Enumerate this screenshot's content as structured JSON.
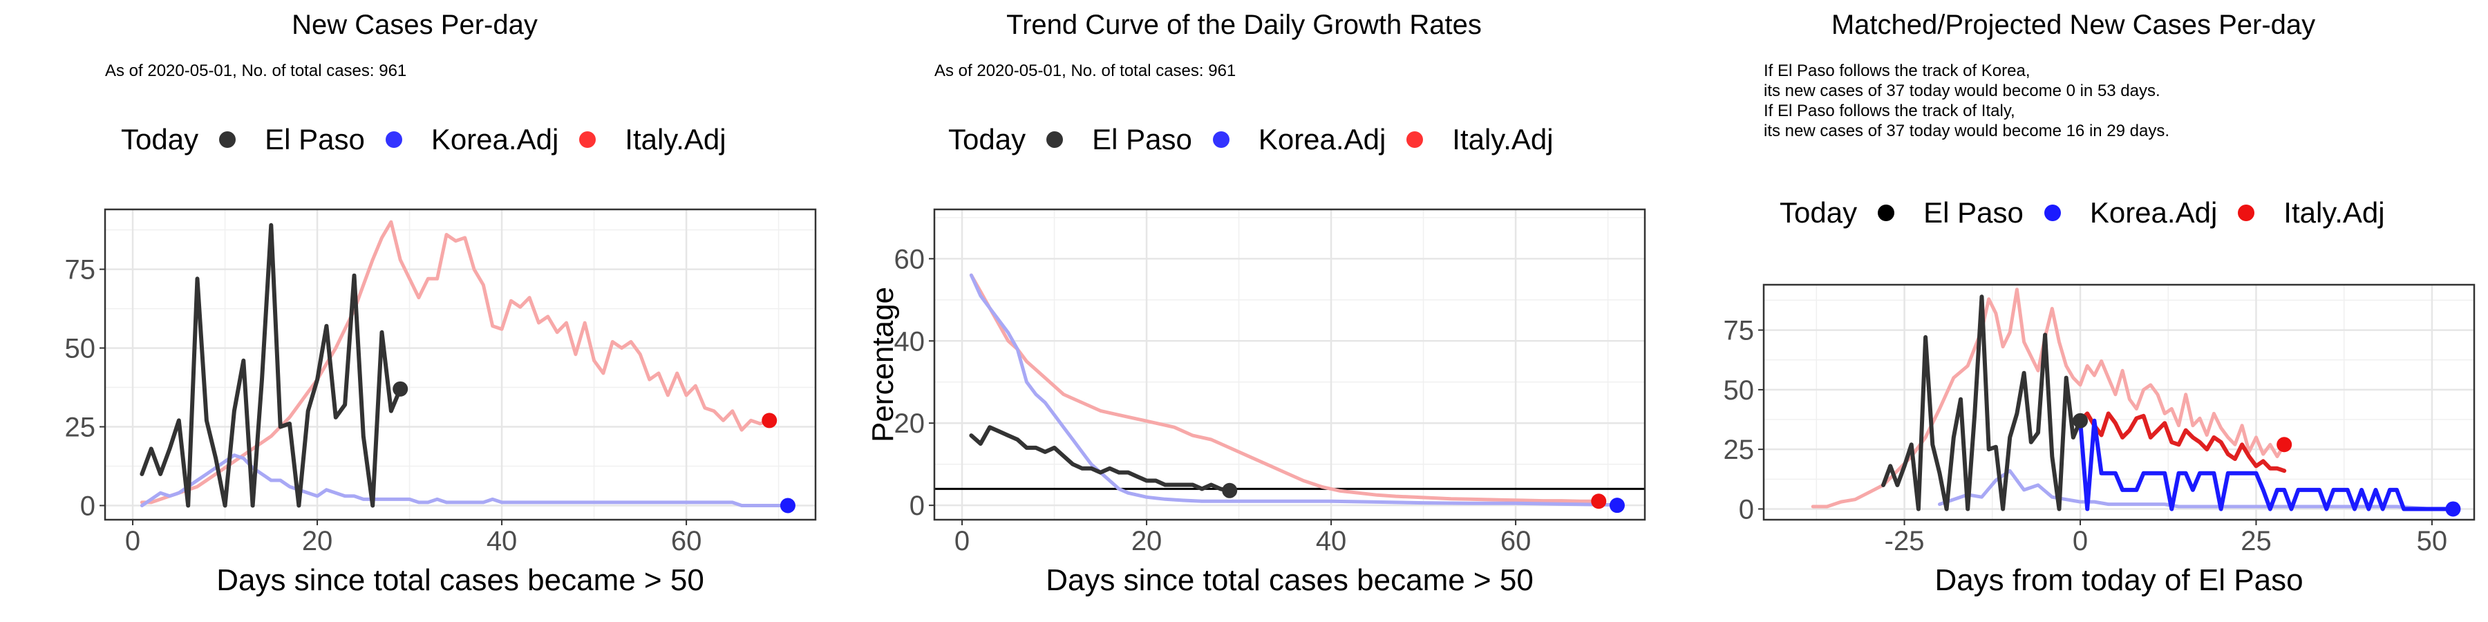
{
  "legend": {
    "title": "Today",
    "entries": [
      {
        "label": "El Paso",
        "color": "#333333"
      },
      {
        "label": "Korea.Adj",
        "color": "#3333ff"
      },
      {
        "label": "Italy.Adj",
        "color": "#ff3333"
      }
    ],
    "entries_panel3": [
      {
        "label": "El Paso",
        "color": "#000000"
      },
      {
        "label": "Korea.Adj",
        "color": "#1a1aff"
      },
      {
        "label": "Italy.Adj",
        "color": "#ee1111"
      }
    ]
  },
  "subtitle": "As of 2020-05-01, No. of total cases: 961",
  "panel3_notes": [
    "If El Paso follows the track of Korea,",
    "its new cases of 37 today would become 0 in 53 days.",
    "If El Paso follows the track of Italy,",
    "its new cases of 37 today would become 16 in 29 days."
  ],
  "chart_data": [
    {
      "type": "line",
      "title": "New Cases Per-day",
      "xlabel": "Days since total cases became > 50",
      "ylabel": "",
      "xlim": [
        -3,
        74
      ],
      "ylim": [
        -4.5,
        94
      ],
      "x_ticks": [
        0,
        20,
        40,
        60
      ],
      "y_ticks": [
        0,
        25,
        50,
        75
      ],
      "grid": true,
      "series": [
        {
          "name": "Italy.Adj",
          "color": "#f7a8a8",
          "x": [
            1,
            2,
            3,
            4,
            5,
            6,
            7,
            8,
            9,
            10,
            11,
            12,
            13,
            14,
            15,
            16,
            17,
            18,
            19,
            20,
            21,
            22,
            23,
            24,
            25,
            26,
            27,
            28,
            29,
            30,
            31,
            32,
            33,
            34,
            35,
            36,
            37,
            38,
            39,
            40,
            41,
            42,
            43,
            44,
            45,
            46,
            47,
            48,
            49,
            50,
            51,
            52,
            53,
            54,
            55,
            56,
            57,
            58,
            59,
            60,
            61,
            62,
            63,
            64,
            65,
            66,
            67,
            68,
            69
          ],
          "y": [
            1,
            1,
            2,
            3,
            4,
            5,
            6,
            8,
            10,
            12,
            14,
            16,
            18,
            20,
            22,
            25,
            28,
            32,
            36,
            40,
            45,
            50,
            56,
            62,
            70,
            78,
            85,
            90,
            78,
            72,
            66,
            72,
            72,
            86,
            84,
            85,
            75,
            70,
            57,
            56,
            65,
            63,
            66,
            58,
            60,
            55,
            58,
            48,
            58,
            46,
            42,
            52,
            50,
            52,
            48,
            40,
            42,
            35,
            42,
            35,
            38,
            31,
            30,
            27,
            30,
            24,
            27,
            26,
            27
          ]
        },
        {
          "name": "Korea.Adj",
          "color": "#a8a8f5",
          "x": [
            1,
            2,
            3,
            4,
            5,
            6,
            7,
            8,
            9,
            10,
            11,
            12,
            13,
            14,
            15,
            16,
            17,
            18,
            19,
            20,
            21,
            22,
            23,
            24,
            25,
            26,
            27,
            28,
            29,
            30,
            31,
            32,
            33,
            34,
            35,
            36,
            37,
            38,
            39,
            40,
            41,
            42,
            43,
            44,
            45,
            46,
            47,
            48,
            49,
            50,
            51,
            52,
            53,
            54,
            55,
            56,
            57,
            58,
            59,
            60,
            61,
            62,
            63,
            64,
            65,
            66,
            67,
            68,
            69,
            70,
            71
          ],
          "y": [
            0,
            2,
            4,
            3,
            4,
            6,
            8,
            10,
            12,
            14,
            16,
            15,
            12,
            10,
            8,
            8,
            6,
            5,
            4,
            3,
            5,
            4,
            3,
            3,
            2,
            2,
            2,
            2,
            2,
            2,
            1,
            1,
            2,
            1,
            1,
            1,
            1,
            1,
            2,
            1,
            1,
            1,
            1,
            1,
            1,
            1,
            1,
            1,
            1,
            1,
            1,
            1,
            1,
            1,
            1,
            1,
            1,
            1,
            1,
            1,
            1,
            1,
            1,
            1,
            1,
            0,
            0,
            0,
            0,
            0,
            0
          ]
        },
        {
          "name": "El Paso",
          "color": "#333333",
          "x": [
            1,
            2,
            3,
            4,
            5,
            6,
            7,
            8,
            9,
            10,
            11,
            12,
            13,
            14,
            15,
            16,
            17,
            18,
            19,
            20,
            21,
            22,
            23,
            24,
            25,
            26,
            27,
            28,
            29
          ],
          "y": [
            10,
            18,
            10,
            18,
            27,
            0,
            72,
            27,
            15,
            0,
            30,
            46,
            0,
            40,
            89,
            25,
            26,
            0,
            30,
            40,
            57,
            28,
            32,
            73,
            22,
            0,
            55,
            30,
            37
          ]
        }
      ],
      "end_points": [
        {
          "series": "El Paso",
          "x": 29,
          "y": 37
        },
        {
          "series": "Korea.Adj",
          "x": 71,
          "y": 0
        },
        {
          "series": "Italy.Adj",
          "x": 69,
          "y": 27
        }
      ]
    },
    {
      "type": "line",
      "title": "Trend Curve of the Daily Growth Rates",
      "xlabel": "Days since total cases became > 50",
      "ylabel": "Percentage",
      "xlim": [
        -3,
        74
      ],
      "ylim": [
        -3.5,
        72
      ],
      "x_ticks": [
        0,
        20,
        40,
        60
      ],
      "y_ticks": [
        0,
        20,
        40,
        60
      ],
      "grid": true,
      "hline": 4,
      "series": [
        {
          "name": "Italy.Adj",
          "color": "#f7a8a8",
          "x": [
            1,
            2,
            3,
            4,
            5,
            6,
            7,
            8,
            9,
            10,
            11,
            12,
            13,
            15,
            17,
            19,
            21,
            23,
            25,
            27,
            29,
            31,
            33,
            35,
            37,
            39,
            41,
            43,
            45,
            47,
            49,
            51,
            53,
            55,
            57,
            59,
            61,
            63,
            65,
            67,
            69
          ],
          "y": [
            56,
            52,
            48,
            44,
            40,
            38,
            35,
            33,
            31,
            29,
            27,
            26,
            25,
            23,
            22,
            21,
            20,
            19,
            17,
            16,
            14,
            12,
            10,
            8,
            6,
            4.5,
            3.5,
            3,
            2.5,
            2.2,
            2,
            1.8,
            1.6,
            1.5,
            1.4,
            1.3,
            1.2,
            1.1,
            1.1,
            1,
            1
          ]
        },
        {
          "name": "Korea.Adj",
          "color": "#a8a8f5",
          "x": [
            1,
            2,
            3,
            4,
            5,
            6,
            7,
            8,
            9,
            10,
            11,
            12,
            13,
            14,
            15,
            16,
            17,
            18,
            20,
            22,
            24,
            26,
            30,
            35,
            40,
            45,
            50,
            55,
            60,
            65,
            68,
            71
          ],
          "y": [
            56,
            51,
            48,
            45,
            42,
            38,
            30,
            27,
            25,
            22,
            19,
            16,
            13,
            10,
            8,
            6,
            4,
            3,
            2,
            1.5,
            1.2,
            1,
            1,
            1,
            1,
            0.8,
            0.6,
            0.5,
            0.5,
            0.3,
            0.2,
            0.1
          ]
        },
        {
          "name": "El Paso",
          "color": "#333333",
          "x": [
            1,
            2,
            3,
            4,
            5,
            6,
            7,
            8,
            9,
            10,
            11,
            12,
            13,
            14,
            15,
            16,
            17,
            18,
            19,
            20,
            21,
            22,
            23,
            24,
            25,
            26,
            27,
            28,
            29
          ],
          "y": [
            17,
            15,
            19,
            18,
            17,
            16,
            14,
            14,
            13,
            14,
            12,
            10,
            9,
            9,
            8,
            9,
            8,
            8,
            7,
            6,
            6,
            5,
            5,
            5,
            5,
            4,
            5,
            4,
            3.6
          ]
        }
      ],
      "end_points": [
        {
          "series": "El Paso",
          "x": 29,
          "y": 3.6
        },
        {
          "series": "Korea.Adj",
          "x": 71,
          "y": 0
        },
        {
          "series": "Italy.Adj",
          "x": 69,
          "y": 1
        }
      ]
    },
    {
      "type": "line",
      "title": "Matched/Projected New Cases Per-day",
      "xlabel": "Days from today of El Paso",
      "ylabel": "",
      "xlim": [
        -45,
        56
      ],
      "ylim": [
        -4.5,
        94
      ],
      "x_ticks": [
        -25,
        0,
        25,
        50
      ],
      "y_ticks": [
        0,
        25,
        50,
        75
      ],
      "grid": true,
      "series": [
        {
          "name": "Italy.Adj (matched)",
          "color": "#f7a8a8",
          "x": [
            -38,
            -36,
            -34,
            -32,
            -30,
            -28,
            -26,
            -24,
            -22,
            -20,
            -18,
            -16,
            -14,
            -13,
            -12,
            -11,
            -10,
            -9,
            -8,
            -7,
            -6,
            -5,
            -4,
            -3,
            -2,
            -1,
            0,
            1,
            2,
            3,
            4,
            5,
            6,
            7,
            8,
            9,
            10,
            11,
            12,
            13,
            14,
            15,
            16,
            17,
            18,
            19,
            20,
            21,
            22,
            23,
            24,
            25,
            26,
            27,
            28,
            29
          ],
          "y": [
            1,
            1,
            3,
            4,
            7,
            10,
            16,
            22,
            30,
            42,
            55,
            60,
            75,
            88,
            82,
            68,
            74,
            92,
            70,
            64,
            58,
            72,
            84,
            70,
            60,
            55,
            52,
            60,
            56,
            62,
            55,
            48,
            58,
            46,
            42,
            50,
            52,
            48,
            40,
            42,
            35,
            48,
            35,
            38,
            31,
            40,
            34,
            30,
            27,
            35,
            24,
            30,
            23,
            27,
            22,
            27
          ]
        },
        {
          "name": "Korea.Adj (matched)",
          "color": "#a8a8f5",
          "x": [
            -20,
            -18,
            -16,
            -14,
            -12,
            -10,
            -9,
            -8,
            -6,
            -4,
            -2,
            0,
            2,
            4,
            6,
            8,
            10,
            12,
            14,
            16,
            18,
            20,
            22,
            24,
            26,
            28,
            30,
            35,
            40,
            45,
            50,
            53
          ],
          "y": [
            2,
            4,
            6,
            5,
            12,
            16,
            12,
            8,
            10,
            5,
            4,
            3,
            3,
            2,
            2,
            2,
            2,
            2,
            1,
            1,
            1,
            1,
            1,
            1,
            1,
            1,
            1,
            1,
            1,
            1,
            0,
            0
          ]
        },
        {
          "name": "El Paso",
          "color": "#333333",
          "x": [
            -28,
            -27,
            -26,
            -25,
            -24,
            -23,
            -22,
            -21,
            -20,
            -19,
            -18,
            -17,
            -16,
            -15,
            -14,
            -13,
            -12,
            -11,
            -10,
            -9,
            -8,
            -7,
            -6,
            -5,
            -4,
            -3,
            -2,
            -1,
            0
          ],
          "y": [
            10,
            18,
            10,
            18,
            27,
            0,
            72,
            27,
            15,
            0,
            30,
            46,
            0,
            40,
            89,
            25,
            26,
            0,
            30,
            40,
            57,
            28,
            32,
            73,
            22,
            0,
            55,
            30,
            37
          ]
        },
        {
          "name": "Italy.Adj (projected)",
          "color": "#e02020",
          "x": [
            0,
            1,
            2,
            3,
            4,
            5,
            6,
            7,
            8,
            9,
            10,
            11,
            12,
            13,
            14,
            15,
            16,
            17,
            18,
            19,
            20,
            21,
            22,
            23,
            24,
            25,
            26,
            27,
            28,
            29
          ],
          "y": [
            37,
            40,
            35,
            31,
            40,
            36,
            30,
            33,
            38,
            39,
            30,
            33,
            36,
            28,
            27,
            33,
            30,
            28,
            25,
            30,
            28,
            23,
            21,
            27,
            22,
            18,
            20,
            17,
            17,
            16
          ]
        },
        {
          "name": "Korea.Adj (projected)",
          "color": "#1a1aff",
          "x": [
            0,
            1,
            2,
            3,
            4,
            5,
            6,
            7,
            8,
            9,
            10,
            11,
            12,
            13,
            14,
            15,
            16,
            17,
            18,
            19,
            20,
            21,
            22,
            23,
            24,
            25,
            26,
            27,
            28,
            29,
            30,
            31,
            32,
            33,
            34,
            35,
            36,
            37,
            38,
            39,
            40,
            41,
            42,
            43,
            44,
            45,
            46,
            47,
            48,
            49,
            50,
            51,
            52,
            53
          ],
          "y": [
            37,
            0,
            37,
            15,
            15,
            15,
            8,
            8,
            8,
            15,
            15,
            15,
            15,
            0,
            15,
            15,
            8,
            15,
            15,
            15,
            0,
            15,
            15,
            15,
            15,
            15,
            8,
            0,
            8,
            8,
            0,
            8,
            8,
            8,
            8,
            0,
            8,
            8,
            8,
            0,
            8,
            0,
            8,
            0,
            8,
            8,
            0,
            0,
            0,
            0,
            0,
            0,
            0,
            0
          ]
        }
      ],
      "end_points": [
        {
          "series": "El Paso",
          "x": 0,
          "y": 37
        },
        {
          "series": "Korea.Adj",
          "x": 53,
          "y": 0
        },
        {
          "series": "Italy.Adj",
          "x": 29,
          "y": 27
        }
      ]
    }
  ]
}
